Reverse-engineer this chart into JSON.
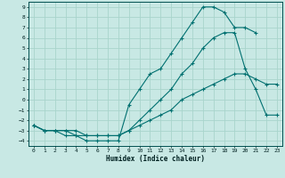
{
  "xlabel": "Humidex (Indice chaleur)",
  "xlim": [
    -0.5,
    23.5
  ],
  "ylim": [
    -4.5,
    9.5
  ],
  "xticks": [
    0,
    1,
    2,
    3,
    4,
    5,
    6,
    7,
    8,
    9,
    10,
    11,
    12,
    13,
    14,
    15,
    16,
    17,
    18,
    19,
    20,
    21,
    22,
    23
  ],
  "yticks": [
    -4,
    -3,
    -2,
    -1,
    0,
    1,
    2,
    3,
    4,
    5,
    6,
    7,
    8,
    9
  ],
  "bg_color": "#c8e8e4",
  "line_color": "#007070",
  "grid_color": "#a8d4cc",
  "line1_x": [
    0,
    1,
    2,
    3,
    4,
    5,
    6,
    7,
    8,
    9,
    10,
    11,
    12,
    13,
    14,
    15,
    16,
    17,
    18,
    19,
    20,
    21
  ],
  "line1_y": [
    -2.5,
    -3.0,
    -3.0,
    -3.5,
    -3.5,
    -4.0,
    -4.0,
    -4.0,
    -4.0,
    -0.5,
    1.0,
    2.5,
    3.0,
    4.5,
    6.0,
    7.5,
    9.0,
    9.0,
    8.5,
    7.0,
    7.0,
    6.5
  ],
  "line2_x": [
    0,
    1,
    2,
    3,
    4,
    5,
    6,
    7,
    8,
    9,
    10,
    11,
    12,
    13,
    14,
    15,
    16,
    17,
    18,
    19,
    20,
    21,
    22,
    23
  ],
  "line2_y": [
    -2.5,
    -3.0,
    -3.0,
    -3.0,
    -3.0,
    -3.5,
    -3.5,
    -3.5,
    -3.5,
    -3.0,
    -2.0,
    -1.0,
    0.0,
    1.0,
    2.5,
    3.5,
    5.0,
    6.0,
    6.5,
    6.5,
    3.0,
    1.0,
    -1.5,
    -1.5
  ],
  "line3_x": [
    0,
    1,
    2,
    3,
    4,
    5,
    6,
    7,
    8,
    9,
    10,
    11,
    12,
    13,
    14,
    15,
    16,
    17,
    18,
    19,
    20,
    21,
    22,
    23
  ],
  "line3_y": [
    -2.5,
    -3.0,
    -3.0,
    -3.0,
    -3.5,
    -3.5,
    -3.5,
    -3.5,
    -3.5,
    -3.0,
    -2.5,
    -2.0,
    -1.5,
    -1.0,
    0.0,
    0.5,
    1.0,
    1.5,
    2.0,
    2.5,
    2.5,
    2.0,
    1.5,
    1.5
  ]
}
